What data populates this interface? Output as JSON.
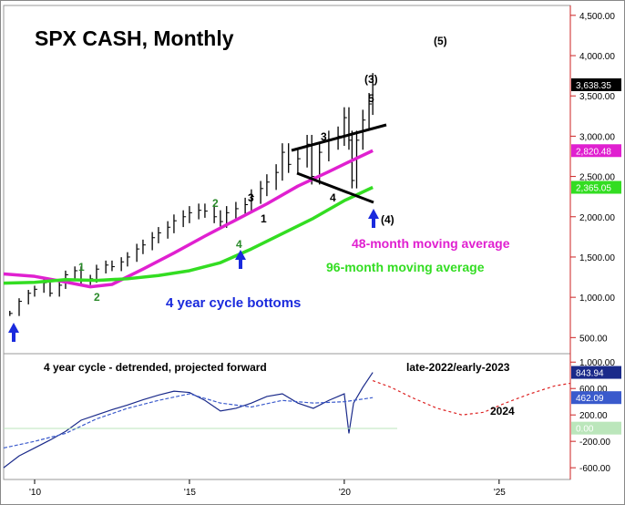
{
  "title": "SPX CASH, Monthly",
  "chart_data": [
    {
      "type": "line",
      "title": "SPX CASH, Monthly",
      "xlabel": "",
      "ylabel": "",
      "x_ticks": [
        "'10",
        "'15",
        "'20",
        "'25"
      ],
      "y_ticks": [
        "500.00",
        "1,000.00",
        "1,500.00",
        "2,000.00",
        "2,500.00",
        "3,000.00",
        "3,500.00",
        "4,000.00",
        "4,500.00"
      ],
      "ylim": [
        300,
        4600
      ],
      "xlim": [
        2009.0,
        2027.3
      ],
      "series": [
        {
          "name": "SPX CASH",
          "style": "ohlc-bars",
          "color": "#000000",
          "x": [
            2009.2,
            2009.5,
            2009.8,
            2010.0,
            2010.3,
            2010.5,
            2010.8,
            2011.0,
            2011.3,
            2011.5,
            2011.8,
            2012.0,
            2012.3,
            2012.5,
            2012.8,
            2013.0,
            2013.3,
            2013.5,
            2013.8,
            2014.0,
            2014.3,
            2014.5,
            2014.8,
            2015.0,
            2015.3,
            2015.5,
            2015.8,
            2016.0,
            2016.2,
            2016.5,
            2016.8,
            2017.0,
            2017.3,
            2017.5,
            2017.8,
            2018.0,
            2018.2,
            2018.5,
            2018.8,
            2018.95,
            2019.2,
            2019.5,
            2019.8,
            2020.0,
            2020.15,
            2020.25,
            2020.4,
            2020.6,
            2020.8,
            2020.92
          ],
          "values": [
            800,
            950,
            1050,
            1100,
            1180,
            1050,
            1150,
            1280,
            1330,
            1200,
            1230,
            1350,
            1400,
            1380,
            1440,
            1500,
            1600,
            1650,
            1740,
            1800,
            1870,
            1950,
            2000,
            2050,
            2080,
            2070,
            2000,
            1940,
            2050,
            2100,
            2150,
            2250,
            2350,
            2430,
            2550,
            2800,
            2650,
            2720,
            2900,
            2500,
            2800,
            2950,
            3000,
            3230,
            2950,
            2450,
            2950,
            3200,
            3400,
            3638.35
          ]
        },
        {
          "name": "48-month moving average",
          "color": "#e020d0",
          "x": [
            2009.0,
            2010.0,
            2011.0,
            2011.8,
            2012.5,
            2013.5,
            2014.5,
            2015.5,
            2016.5,
            2017.5,
            2018.5,
            2019.5,
            2020.2,
            2020.92
          ],
          "values": [
            1290,
            1260,
            1190,
            1130,
            1160,
            1350,
            1550,
            1760,
            1960,
            2160,
            2380,
            2560,
            2690,
            2820.48
          ]
        },
        {
          "name": "96-month moving average",
          "color": "#33dd22",
          "x": [
            2009.0,
            2010.0,
            2011.0,
            2012.0,
            2013.0,
            2014.0,
            2015.0,
            2016.0,
            2017.0,
            2018.0,
            2019.0,
            2020.0,
            2020.92
          ],
          "values": [
            1175,
            1185,
            1220,
            1210,
            1230,
            1270,
            1330,
            1430,
            1600,
            1790,
            1980,
            2200,
            2365.05
          ]
        }
      ],
      "last_value_labels": [
        {
          "text": "3,638.35",
          "bg": "#000000",
          "color": "#ffffff"
        },
        {
          "text": "2,820.48",
          "bg": "#e020d0",
          "color": "#ffffff"
        },
        {
          "text": "2,365.05",
          "bg": "#33dd22",
          "color": "#ffffff"
        }
      ],
      "annotations": [
        "(5)",
        "(3)",
        "5",
        "3",
        "4",
        "(4)",
        "3",
        "1",
        "2",
        "4",
        "1",
        "2"
      ],
      "labels": {
        "ma48": "48-month moving average",
        "ma96": "96-month moving average",
        "cycle_bottoms": "4 year cycle bottoms"
      }
    },
    {
      "type": "line",
      "title": "4 year cycle - detrended, projected forward",
      "y_ticks": [
        "1,000.00",
        "600.00",
        "200.00",
        "0.00",
        "-200.00",
        "-600.00"
      ],
      "ylim": [
        -750,
        1100
      ],
      "series": [
        {
          "name": "detrended",
          "color": "#1a2a8a",
          "x": [
            2009.0,
            2009.5,
            2010.0,
            2010.5,
            2011.0,
            2011.5,
            2012.0,
            2012.5,
            2013.0,
            2013.5,
            2014.0,
            2014.5,
            2015.0,
            2015.5,
            2016.0,
            2016.5,
            2017.0,
            2017.5,
            2018.0,
            2018.5,
            2019.0,
            2019.5,
            2020.0,
            2020.15,
            2020.3,
            2020.6,
            2020.92
          ],
          "values": [
            -600,
            -420,
            -300,
            -180,
            -50,
            120,
            200,
            280,
            350,
            430,
            500,
            560,
            540,
            420,
            260,
            300,
            380,
            480,
            520,
            380,
            300,
            420,
            520,
            -80,
            380,
            620,
            843.94
          ]
        },
        {
          "name": "smoothed",
          "color": "#3a5acc",
          "dashed": true,
          "x": [
            2009.0,
            2010.0,
            2011.0,
            2012.0,
            2013.0,
            2014.0,
            2015.0,
            2016.0,
            2017.0,
            2018.0,
            2019.0,
            2020.0,
            2020.92
          ],
          "values": [
            -300,
            -200,
            -80,
            140,
            300,
            420,
            520,
            380,
            320,
            420,
            380,
            400,
            462.09
          ]
        },
        {
          "name": "projection",
          "color": "#dd2222",
          "dotted": true,
          "x": [
            2020.92,
            2021.5,
            2022.2,
            2023.0,
            2023.8,
            2024.5,
            2025.2,
            2026.0,
            2026.8,
            2027.3
          ],
          "values": [
            720,
            620,
            460,
            300,
            200,
            240,
            380,
            520,
            640,
            680
          ]
        }
      ],
      "last_value_labels": [
        {
          "text": "843.94",
          "bg": "#1a2a8a",
          "color": "#ffffff"
        },
        {
          "text": "462.09",
          "bg": "#3a5acc",
          "color": "#ffffff"
        },
        {
          "text": "0.00",
          "bg": "#bbe6bb",
          "color": "#ffffff"
        }
      ],
      "annotations": [
        "late-2022/early-2023",
        "2024"
      ]
    }
  ]
}
